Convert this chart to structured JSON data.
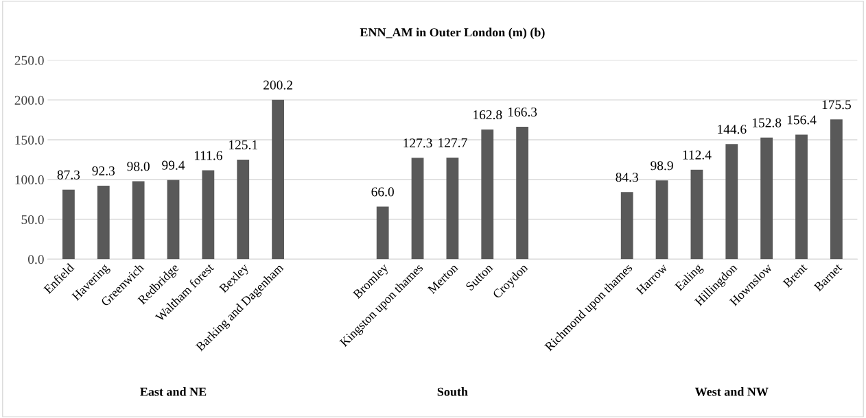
{
  "chart_data": {
    "type": "bar",
    "title": "ENN_AM in Outer London (m) (b)",
    "categories": [
      "Enfield",
      "Havering",
      "Greenwich",
      "Redbridge",
      "Waltham forest",
      "Bexley",
      "Barking and Dagenham",
      null,
      null,
      "Bromley",
      "Kingston upon thames",
      "Merton",
      "Sutton",
      "Croydon",
      null,
      null,
      "Richmond upon thames",
      "Harrow",
      "Ealing",
      "Hillingdon",
      "Hownslow",
      "Brent",
      "Barnet"
    ],
    "values": [
      87.3,
      92.3,
      98.0,
      99.4,
      111.6,
      125.1,
      200.2,
      null,
      null,
      66.0,
      127.3,
      127.7,
      162.8,
      166.3,
      null,
      null,
      84.3,
      98.9,
      112.4,
      144.6,
      152.8,
      156.4,
      175.5
    ],
    "value_labels": [
      "87.3",
      "92.3",
      "98.0",
      "99.4",
      "111.6",
      "125.1",
      "200.2",
      null,
      null,
      "66.0",
      "127.3",
      "127.7",
      "162.8",
      "166.3",
      null,
      null,
      "84.3",
      "98.9",
      "112.4",
      "144.6",
      "152.8",
      "156.4",
      "175.5"
    ],
    "color": "#595959",
    "ylim": [
      0,
      250
    ],
    "yticks": [
      {
        "value": 0,
        "label": "0.0"
      },
      {
        "value": 50,
        "label": "50.0"
      },
      {
        "value": 100,
        "label": "100.0"
      },
      {
        "value": 150,
        "label": "150.0"
      },
      {
        "value": 200,
        "label": "200.0"
      },
      {
        "value": 250,
        "label": "250.0"
      }
    ],
    "grid": "y",
    "annotations": [
      "East and NE",
      "South",
      "West and NW"
    ]
  }
}
